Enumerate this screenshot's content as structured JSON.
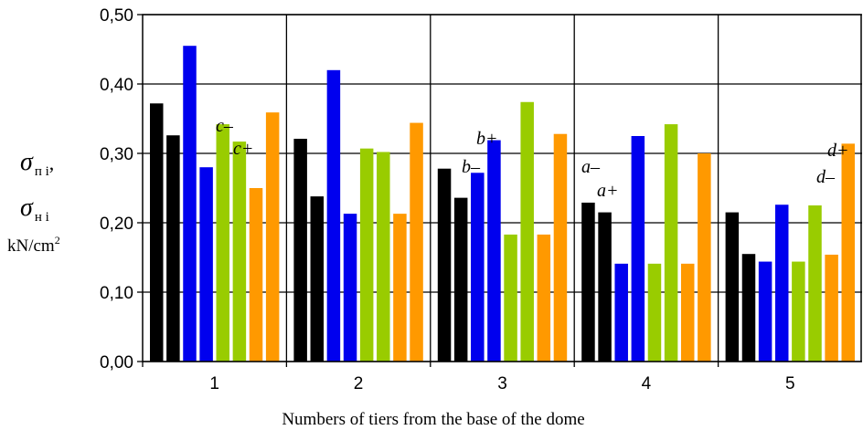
{
  "chart_data": {
    "type": "bar",
    "categories": [
      "1",
      "2",
      "3",
      "4",
      "5"
    ],
    "xlabel": "Numbers of tiers from the base of the dome",
    "ylabel": {
      "line1_symbol": "σ",
      "line1_sub": "п i",
      "line1_suffix": ",",
      "line2_symbol": "σ",
      "line2_sub": "н i",
      "units_base": "kN/cm",
      "units_exp": "2"
    },
    "ylim": [
      0,
      0.5
    ],
    "yticks": [
      "0,00",
      "0,10",
      "0,20",
      "0,30",
      "0,40",
      "0,50"
    ],
    "grid": true,
    "colors": [
      "#000000",
      "#000000",
      "#0000ee",
      "#0000ee",
      "#99cc00",
      "#99cc00",
      "#ff9900",
      "#ff9900"
    ],
    "values": [
      [
        0.372,
        0.326,
        0.455,
        0.28,
        0.342,
        0.317,
        0.25,
        0.359
      ],
      [
        0.321,
        0.238,
        0.42,
        0.213,
        0.307,
        0.302,
        0.213,
        0.344
      ],
      [
        0.278,
        0.236,
        0.272,
        0.319,
        0.183,
        0.374,
        0.183,
        0.328
      ],
      [
        0.229,
        0.215,
        0.141,
        0.325,
        0.141,
        0.342,
        0.141,
        0.3
      ],
      [
        0.215,
        0.155,
        0.144,
        0.226,
        0.144,
        0.225,
        0.154,
        0.314
      ]
    ],
    "annotations": [
      {
        "text": "c–",
        "category": 0
      },
      {
        "text": "c+",
        "category": 0
      },
      {
        "text": "b+",
        "category": 2
      },
      {
        "text": "b–",
        "category": 2
      },
      {
        "text": "a–",
        "category": 3
      },
      {
        "text": "a+",
        "category": 3
      },
      {
        "text": "d+",
        "category": 4
      },
      {
        "text": "d–",
        "category": 4
      }
    ]
  }
}
